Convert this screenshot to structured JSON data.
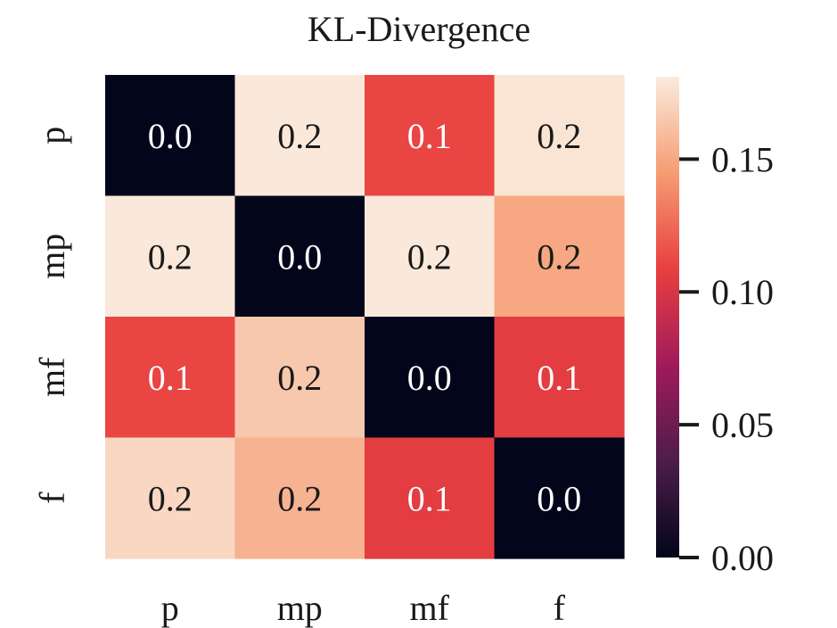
{
  "chart_data": {
    "type": "heatmap",
    "title": "KL-Divergence",
    "x_labels": [
      "p",
      "mp",
      "mf",
      "f"
    ],
    "y_labels": [
      "p",
      "mp",
      "mf",
      "f"
    ],
    "values": [
      [
        0.0,
        0.18,
        0.111,
        0.178
      ],
      [
        0.18,
        0.0,
        0.18,
        0.15
      ],
      [
        0.111,
        0.165,
        0.0,
        0.106
      ],
      [
        0.172,
        0.155,
        0.106,
        0.0
      ]
    ],
    "annotations": [
      [
        "0.0",
        "0.2",
        "0.1",
        "0.2"
      ],
      [
        "0.2",
        "0.0",
        "0.2",
        "0.2"
      ],
      [
        "0.1",
        "0.2",
        "0.0",
        "0.1"
      ],
      [
        "0.2",
        "0.2",
        "0.1",
        "0.0"
      ]
    ],
    "colormap": "rocket",
    "colorbar": {
      "vmin": 0.0,
      "vmax": 0.181,
      "ticks": [
        0.0,
        0.05,
        0.1,
        0.15
      ],
      "tick_labels": [
        "0.00",
        "0.05",
        "0.10",
        "0.15"
      ]
    },
    "colors": {
      "stops": [
        "#03051a",
        "#4c1d4b",
        "#a11a5b",
        "#e83f3f",
        "#f69c73",
        "#faebdd"
      ],
      "text_dark": "#1a1a1a",
      "text_light": "#ffffff",
      "tick": "#1a1a1a"
    }
  }
}
